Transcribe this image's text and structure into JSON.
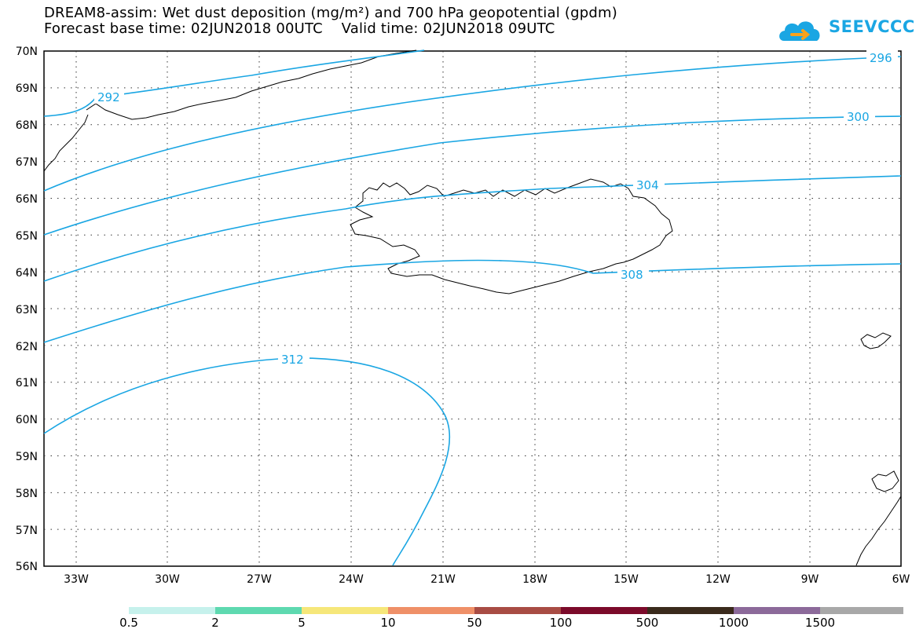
{
  "title": {
    "line1": "DREAM8-assim: Wet dust deposition (mg/m²) and 700 hPa geopotential (gpdm)",
    "line2": "Forecast base time: 02JUN2018 00UTC    Valid time: 02JUN2018 09UTC"
  },
  "logo": {
    "text": "SEEVCCC",
    "icon": "cloud-logo-icon",
    "color": "#1aa6e3"
  },
  "map": {
    "lat_labels": [
      "70N",
      "69N",
      "68N",
      "67N",
      "66N",
      "65N",
      "64N",
      "63N",
      "62N",
      "61N",
      "60N",
      "59N",
      "58N",
      "57N",
      "56N"
    ],
    "lon_labels": [
      "33W",
      "30W",
      "27W",
      "24W",
      "21W",
      "18W",
      "15W",
      "12W",
      "9W",
      "6W"
    ],
    "contour_color": "#1aa6e3",
    "contours": [
      {
        "label": "292"
      },
      {
        "label": "296"
      },
      {
        "label": "300"
      },
      {
        "label": "304"
      },
      {
        "label": "308"
      },
      {
        "label": "312"
      }
    ]
  },
  "colorbar": {
    "labels": [
      "0.5",
      "2",
      "5",
      "10",
      "50",
      "100",
      "500",
      "1000",
      "1500"
    ],
    "colors": [
      "#c6f1ec",
      "#5ed9b0",
      "#f6e77a",
      "#ef9068",
      "#a84c44",
      "#7b0a2a",
      "#3a2a1c",
      "#8c6a9a",
      "#a8a8a8"
    ]
  }
}
